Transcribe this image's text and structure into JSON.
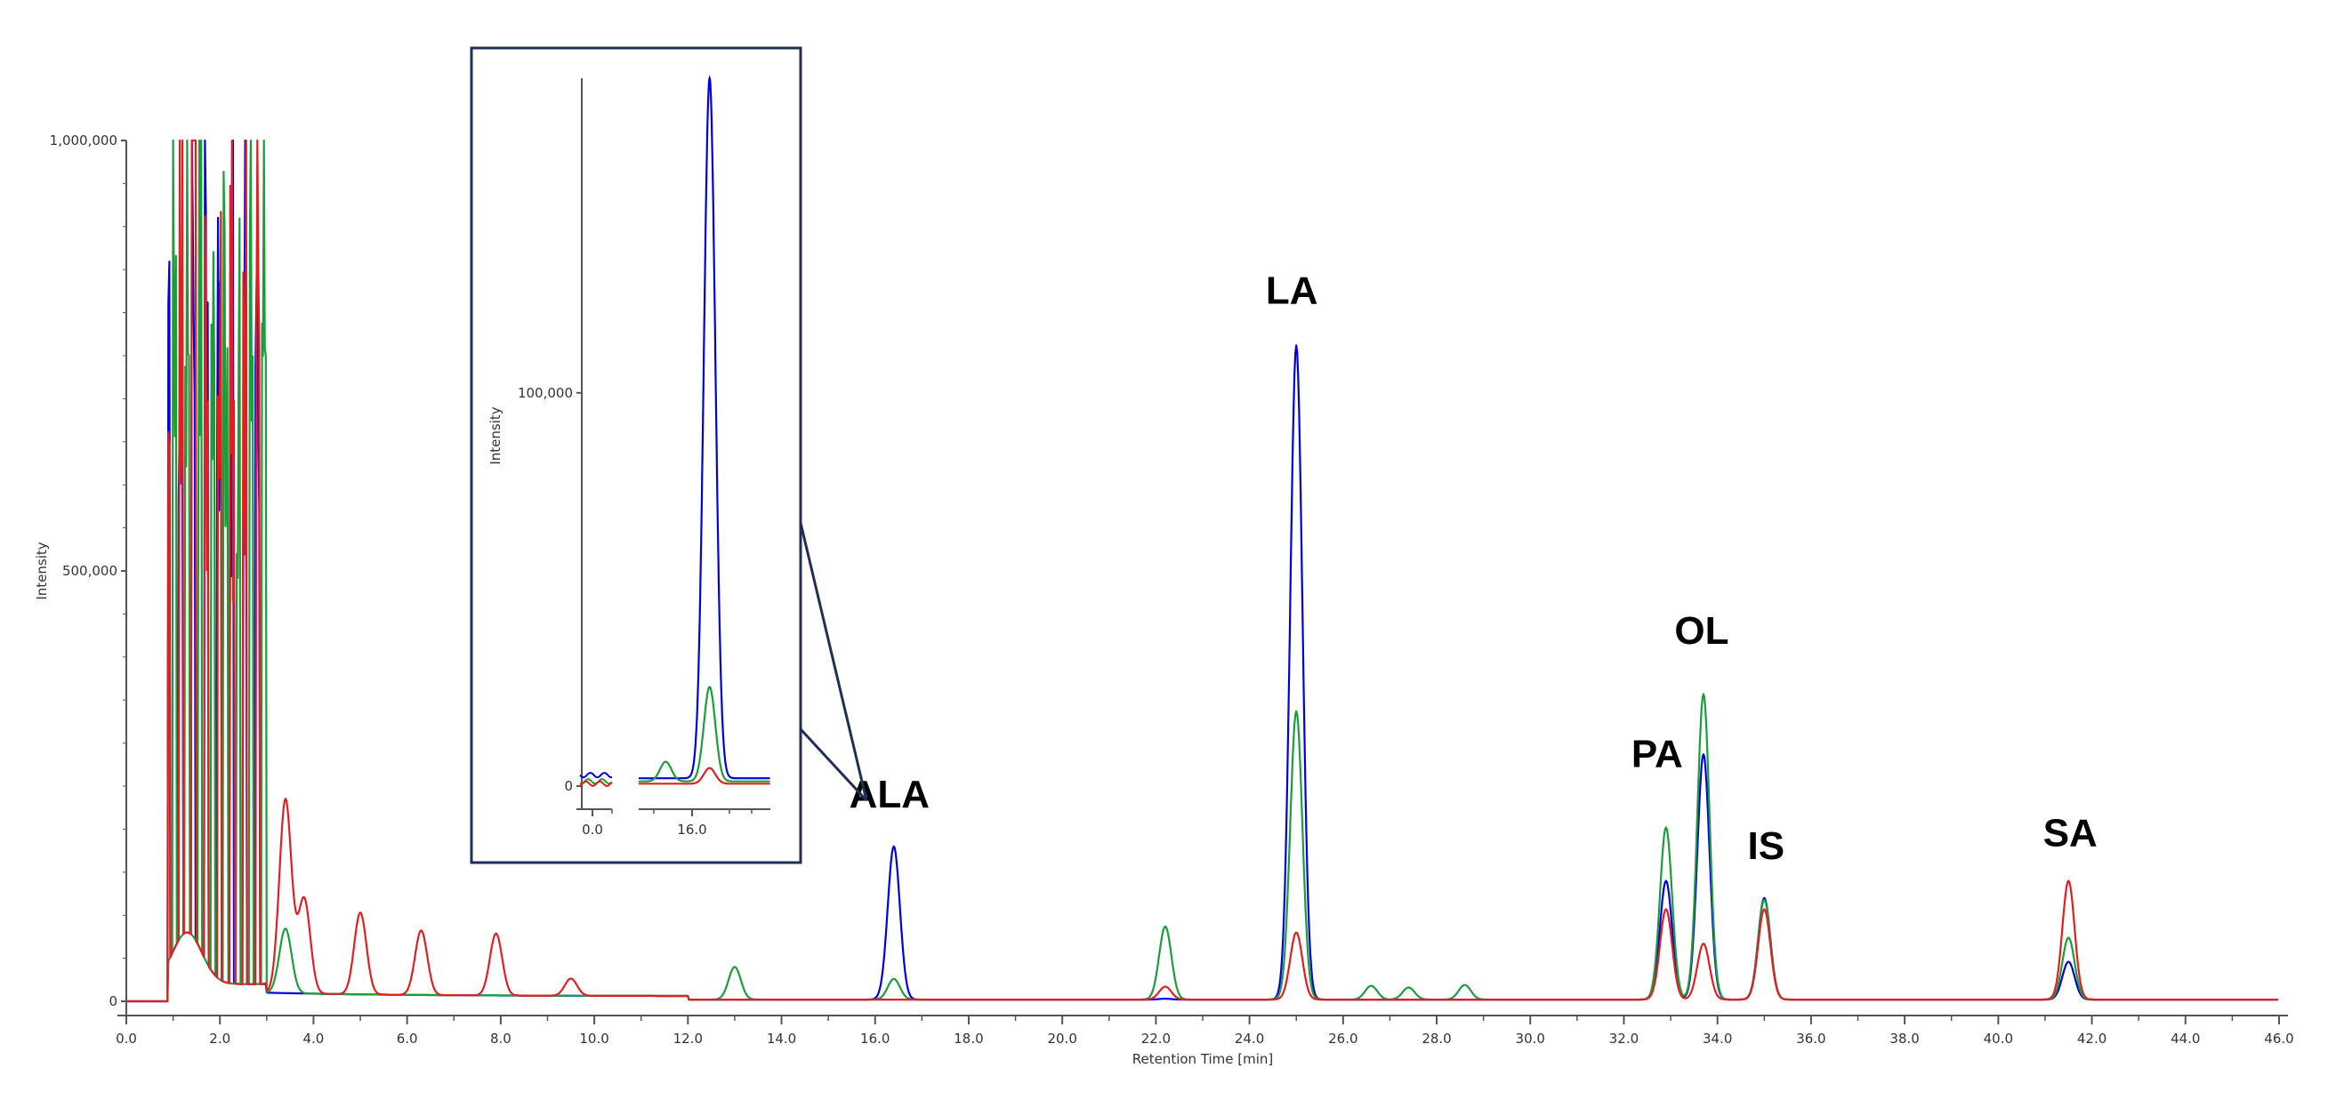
{
  "chart_data": {
    "type": "line",
    "title": "",
    "xlabel": "Retention Time [min]",
    "ylabel": "Intensity",
    "xlim": [
      0,
      46
    ],
    "ylim": [
      0,
      1000000
    ],
    "x_ticks": [
      "0.0",
      "2.0",
      "4.0",
      "6.0",
      "8.0",
      "10.0",
      "12.0",
      "14.0",
      "16.0",
      "18.0",
      "20.0",
      "22.0",
      "24.0",
      "26.0",
      "28.0",
      "30.0",
      "32.0",
      "34.0",
      "36.0",
      "38.0",
      "40.0",
      "42.0",
      "44.0",
      "46.0"
    ],
    "y_ticks": [
      {
        "value": 0,
        "label": "0"
      },
      {
        "value": 500000,
        "label": "500,000"
      },
      {
        "value": 1000000,
        "label": "1,000,000"
      }
    ],
    "grid": false,
    "legend": "none",
    "series": [
      {
        "color": "#0000e0",
        "peaks": [
          [
            16.4,
            178000
          ],
          [
            22.2,
            1000
          ],
          [
            25.0,
            760000
          ],
          [
            32.9,
            138000
          ],
          [
            33.7,
            285000
          ],
          [
            35.0,
            118000
          ],
          [
            41.5,
            44000
          ]
        ]
      },
      {
        "color": "#1a9e3a",
        "peaks": [
          [
            3.4,
            75000
          ],
          [
            13.0,
            38000
          ],
          [
            16.4,
            24000
          ],
          [
            22.2,
            85000
          ],
          [
            25.0,
            335000
          ],
          [
            26.6,
            16000
          ],
          [
            27.4,
            14000
          ],
          [
            28.6,
            17000
          ],
          [
            32.9,
            200000
          ],
          [
            33.7,
            355000
          ],
          [
            35.0,
            116000
          ],
          [
            41.5,
            72000
          ]
        ]
      },
      {
        "color": "#e02020",
        "peaks": [
          [
            3.4,
            225000
          ],
          [
            3.8,
            110000
          ],
          [
            5.0,
            95000
          ],
          [
            6.3,
            75000
          ],
          [
            7.9,
            72000
          ],
          [
            9.5,
            20000
          ],
          [
            22.2,
            15000
          ],
          [
            25.0,
            78000
          ],
          [
            32.9,
            105000
          ],
          [
            33.7,
            65000
          ],
          [
            35.0,
            105000
          ],
          [
            41.5,
            138000
          ]
        ]
      }
    ],
    "annotations": [
      {
        "text": "ALA",
        "x": 16.4
      },
      {
        "text": "LA",
        "x": 25.0
      },
      {
        "text": "PA",
        "x": 32.9
      },
      {
        "text": "OL",
        "x": 33.7
      },
      {
        "text": "IS",
        "x": 35.0
      },
      {
        "text": "SA",
        "x": 41.5
      }
    ],
    "inset": {
      "ylabel": "Intensity",
      "y_tick_labels": [
        "0",
        "100,000"
      ],
      "x_tick_labels": [
        "0.0",
        "16.0"
      ],
      "zoom_peak": "ALA"
    }
  }
}
